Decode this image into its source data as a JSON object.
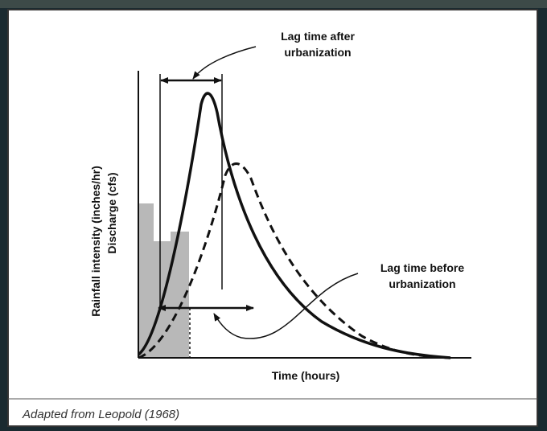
{
  "diagram": {
    "y_axis_label": [
      "Rainfall intensity (inches/hr)",
      "Discharge (cfs)"
    ],
    "x_axis_label": "Time (hours)",
    "annotations": [
      {
        "lines": [
          "Lag time after",
          "urbanization"
        ]
      },
      {
        "lines": [
          "Lag time before",
          "urbanization"
        ]
      }
    ]
  },
  "caption": "Adapted from Leopold (1968)"
}
